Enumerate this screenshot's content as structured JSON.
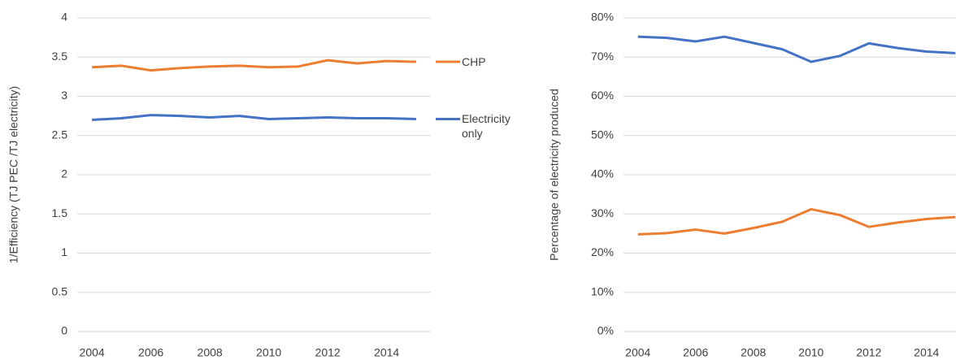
{
  "chart_data": [
    {
      "type": "line",
      "y_label": "1/Efficiency (TJ PEC /TJ electricity)",
      "x": [
        2004,
        2005,
        2006,
        2007,
        2008,
        2009,
        2010,
        2011,
        2012,
        2013,
        2014,
        2015
      ],
      "series": [
        {
          "name": "CHP",
          "color": "#ed7d31",
          "values": [
            3.37,
            3.39,
            3.33,
            3.36,
            3.38,
            3.39,
            3.37,
            3.38,
            3.46,
            3.42,
            3.45,
            3.44
          ]
        },
        {
          "name": "Electricity only",
          "color": "#4472c4",
          "values": [
            2.7,
            2.72,
            2.76,
            2.75,
            2.73,
            2.75,
            2.71,
            2.72,
            2.73,
            2.72,
            2.72,
            2.71
          ]
        }
      ],
      "xlim": [
        2003.5,
        2015.5
      ],
      "xticks": [
        2004,
        2006,
        2008,
        2010,
        2012,
        2014
      ],
      "ylim": [
        0,
        4
      ],
      "yticks": [
        0,
        0.5,
        1,
        1.5,
        2,
        2.5,
        3,
        3.5,
        4
      ],
      "grid": true,
      "legend": "right"
    },
    {
      "type": "line",
      "y_label": "Percentage of electricity produced",
      "x": [
        2004,
        2005,
        2006,
        2007,
        2008,
        2009,
        2010,
        2011,
        2012,
        2013,
        2014,
        2015
      ],
      "series": [
        {
          "color": "#4472c4",
          "values": [
            75.2,
            74.9,
            74.0,
            75.2,
            73.6,
            72.0,
            68.8,
            70.3,
            73.5,
            72.3,
            71.4,
            71.0
          ]
        },
        {
          "color": "#ed7d31",
          "values": [
            24.8,
            25.1,
            26.0,
            25.0,
            26.4,
            28.0,
            31.2,
            29.7,
            26.7,
            27.8,
            28.7,
            29.2
          ]
        }
      ],
      "xlim": [
        2003.5,
        2015.5
      ],
      "xticks": [
        2004,
        2006,
        2008,
        2010,
        2012,
        2014
      ],
      "ylim": [
        0,
        80
      ],
      "yticks": [
        {
          "value": 0,
          "label": "0%"
        },
        {
          "value": 10,
          "label": "10%"
        },
        {
          "value": 20,
          "label": "20%"
        },
        {
          "value": 30,
          "label": "30%"
        },
        {
          "value": 40,
          "label": "40%"
        },
        {
          "value": 50,
          "label": "50%"
        },
        {
          "value": 60,
          "label": "60%"
        },
        {
          "value": 70,
          "label": "70%"
        },
        {
          "value": 80,
          "label": "80%"
        }
      ],
      "grid": true
    }
  ]
}
